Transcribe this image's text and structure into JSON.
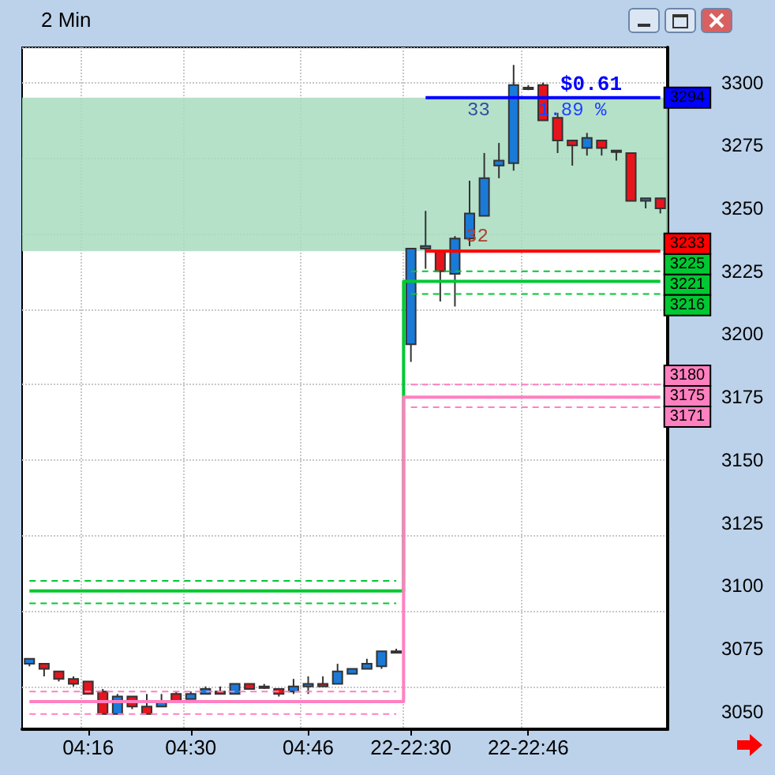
{
  "chart_data": {
    "type": "candlestick",
    "title": "2 Min",
    "categories": [
      null,
      null,
      null,
      null,
      "04:16",
      null,
      null,
      null,
      null,
      null,
      null,
      "04:30",
      null,
      null,
      null,
      null,
      null,
      null,
      null,
      "04:46",
      null,
      null,
      null,
      null,
      null,
      null,
      "22-22:30",
      null,
      null,
      null,
      null,
      null,
      null,
      null,
      "22-22:46",
      null,
      null,
      null,
      null,
      null,
      null,
      null,
      null,
      null
    ],
    "ohlc": [
      [
        3069,
        3071,
        3068,
        3071
      ],
      [
        3069,
        3069,
        3064,
        3067
      ],
      [
        3066,
        3066,
        3062,
        3063
      ],
      [
        3063,
        3064,
        3060,
        3061
      ],
      [
        3062,
        3062,
        3057,
        3057
      ],
      [
        3058,
        3059,
        3049,
        3049
      ],
      [
        3049,
        3057,
        3049,
        3056
      ],
      [
        3056,
        3056,
        3051,
        3052
      ],
      [
        3052,
        3057,
        3049,
        3049
      ],
      [
        3052,
        3057,
        3052,
        3054
      ],
      [
        3057,
        3058,
        3054,
        3054
      ],
      [
        3055,
        3058,
        3055,
        3057
      ],
      [
        3057,
        3060,
        3057,
        3059
      ],
      [
        3058,
        3060,
        3057,
        3057
      ],
      [
        3057,
        3061,
        3057,
        3061
      ],
      [
        3061,
        3061,
        3059,
        3059
      ],
      [
        3060,
        3061,
        3059,
        3060
      ],
      [
        3059,
        3059,
        3056,
        3057
      ],
      [
        3058,
        3063,
        3057,
        3060
      ],
      [
        3060,
        3064,
        3057,
        3061
      ],
      [
        3061,
        3064,
        3060,
        3060
      ],
      [
        3061,
        3069,
        3061,
        3066
      ],
      [
        3065,
        3067,
        3065,
        3067
      ],
      [
        3067,
        3071,
        3067,
        3069
      ],
      [
        3068,
        3074,
        3067,
        3074
      ],
      [
        3074,
        3075,
        3074,
        3074
      ],
      [
        3196,
        3234,
        3189,
        3234
      ],
      [
        3234,
        3249,
        3226,
        3235
      ],
      [
        3233,
        3233,
        3213,
        3225
      ],
      [
        3224,
        3239,
        3211,
        3238
      ],
      [
        3238,
        3261,
        3235,
        3248
      ],
      [
        3247,
        3272,
        3247,
        3262
      ],
      [
        3267,
        3276,
        3262,
        3269
      ],
      [
        3268,
        3307,
        3265,
        3299
      ],
      [
        3298,
        3299,
        3297,
        3298
      ],
      [
        3299,
        3300,
        3285,
        3285
      ],
      [
        3286,
        3288,
        3272,
        3277
      ],
      [
        3277,
        3277,
        3267,
        3275
      ],
      [
        3274,
        3280,
        3271,
        3278
      ],
      [
        3277,
        3277,
        3271,
        3274
      ],
      [
        3273,
        3273,
        3269,
        3273
      ],
      [
        3272,
        3272,
        3253,
        3253
      ],
      [
        3253,
        3254,
        3250,
        3254
      ],
      [
        3254,
        3254,
        3248,
        3250
      ]
    ],
    "colors": [
      "#1a7ad8",
      "#e8141c",
      "#e8141c",
      "#e8141c",
      "#e8141c",
      "#e8141c",
      "#1a7ad8",
      "#e8141c",
      "#e8141c",
      "#1a7ad8",
      "#e8141c",
      "#1a7ad8",
      "#1a7ad8",
      "#e8141c",
      "#1a7ad8",
      "#e8141c",
      "#1a7ad8",
      "#e8141c",
      "#1a7ad8",
      "#1a7ad8",
      "#e8141c",
      "#1a7ad8",
      "#1a7ad8",
      "#1a7ad8",
      "#1a7ad8",
      "#1a7ad8",
      "#1a7ad8",
      "#1a7ad8",
      "#e8141c",
      "#1a7ad8",
      "#1a7ad8",
      "#1a7ad8",
      "#1a7ad8",
      "#1a7ad8",
      "#1a7ad8",
      "#e8141c",
      "#e8141c",
      "#e8141c",
      "#1a7ad8",
      "#e8141c",
      "#1a7ad8",
      "#e8141c",
      "#1a7ad8",
      "#e8141c"
    ],
    "series": [
      {
        "type": "step",
        "color": "#00c832",
        "line_style": "solid",
        "values": [
          3098,
          3098,
          3098,
          3098,
          3098,
          3098,
          3098,
          3098,
          3098,
          3098,
          3098,
          3098,
          3098,
          3098,
          3098,
          3098,
          3098,
          3098,
          3098,
          3098,
          3098,
          3098,
          3098,
          3098,
          3098,
          3098,
          3221,
          3221,
          3221,
          3221,
          3221,
          3221,
          3221,
          3221,
          3221,
          3221,
          3221,
          3221,
          3221,
          3221,
          3221,
          3221,
          3221,
          3221
        ],
        "value_labels": [
          null,
          null,
          null,
          null,
          null,
          null,
          null,
          null,
          null,
          null,
          null,
          null,
          null,
          null,
          null,
          null,
          null,
          null,
          null,
          null,
          null,
          null,
          null,
          null,
          null,
          null,
          null,
          null,
          null,
          null,
          null,
          null,
          null,
          null,
          null,
          null,
          null,
          null,
          null,
          null,
          null,
          null,
          null,
          "3221"
        ]
      },
      {
        "type": "line",
        "color": "#00c832",
        "line_style": "dashed",
        "values": [
          3102,
          3102,
          3102,
          3102,
          3102,
          3102,
          3102,
          3102,
          3102,
          3102,
          3102,
          3102,
          3102,
          3102,
          3102,
          3102,
          3102,
          3102,
          3102,
          3102,
          3102,
          3102,
          3102,
          3102,
          3102,
          3102,
          null,
          null,
          null,
          null,
          null,
          null,
          null,
          null,
          null,
          null,
          null,
          null,
          null,
          null,
          null,
          null,
          null,
          null
        ]
      },
      {
        "type": "line",
        "color": "#00c832",
        "line_style": "dashed",
        "values": [
          3093,
          3093,
          3093,
          3093,
          3093,
          3093,
          3093,
          3093,
          3093,
          3093,
          3093,
          3093,
          3093,
          3093,
          3093,
          3093,
          3093,
          3093,
          3093,
          3093,
          3093,
          3093,
          3093,
          3093,
          3093,
          3093,
          null,
          null,
          null,
          null,
          null,
          null,
          null,
          null,
          null,
          null,
          null,
          null,
          null,
          null,
          null,
          null,
          null,
          null
        ]
      },
      {
        "type": "line",
        "color": "#00c832",
        "line_style": "dashed",
        "values": [
          null,
          null,
          null,
          null,
          null,
          null,
          null,
          null,
          null,
          null,
          null,
          null,
          null,
          null,
          null,
          null,
          null,
          null,
          null,
          null,
          null,
          null,
          null,
          null,
          null,
          null,
          3225,
          3225,
          3225,
          3225,
          3225,
          3225,
          3225,
          3225,
          3225,
          3225,
          3225,
          3225,
          3225,
          3225,
          3225,
          3225,
          3225,
          3225
        ],
        "value_labels": [
          null,
          null,
          null,
          null,
          null,
          null,
          null,
          null,
          null,
          null,
          null,
          null,
          null,
          null,
          null,
          null,
          null,
          null,
          null,
          null,
          null,
          null,
          null,
          null,
          null,
          null,
          null,
          null,
          null,
          null,
          null,
          null,
          null,
          null,
          null,
          null,
          null,
          null,
          null,
          null,
          null,
          null,
          null,
          "3225"
        ]
      },
      {
        "type": "line",
        "color": "#00c832",
        "line_style": "dashed",
        "values": [
          null,
          null,
          null,
          null,
          null,
          null,
          null,
          null,
          null,
          null,
          null,
          null,
          null,
          null,
          null,
          null,
          null,
          null,
          null,
          null,
          null,
          null,
          null,
          null,
          null,
          null,
          3216,
          3216,
          3216,
          3216,
          3216,
          3216,
          3216,
          3216,
          3216,
          3216,
          3216,
          3216,
          3216,
          3216,
          3216,
          3216,
          3216,
          3216
        ],
        "value_labels": [
          null,
          null,
          null,
          null,
          null,
          null,
          null,
          null,
          null,
          null,
          null,
          null,
          null,
          null,
          null,
          null,
          null,
          null,
          null,
          null,
          null,
          null,
          null,
          null,
          null,
          null,
          null,
          null,
          null,
          null,
          null,
          null,
          null,
          null,
          null,
          null,
          null,
          null,
          null,
          null,
          null,
          null,
          null,
          "3216"
        ]
      },
      {
        "type": "step",
        "color": "#ff80c0",
        "line_style": "solid",
        "values": [
          3054,
          3054,
          3054,
          3054,
          3054,
          3054,
          3054,
          3054,
          3054,
          3054,
          3054,
          3054,
          3054,
          3054,
          3054,
          3054,
          3054,
          3054,
          3054,
          3054,
          3054,
          3054,
          3054,
          3054,
          3054,
          3054,
          3175,
          3175,
          3175,
          3175,
          3175,
          3175,
          3175,
          3175,
          3175,
          3175,
          3175,
          3175,
          3175,
          3175,
          3175,
          3175,
          3175,
          3175
        ],
        "value_labels": [
          null,
          null,
          null,
          null,
          null,
          null,
          null,
          null,
          null,
          null,
          null,
          null,
          null,
          null,
          null,
          null,
          null,
          null,
          null,
          null,
          null,
          null,
          null,
          null,
          null,
          null,
          null,
          null,
          null,
          null,
          null,
          null,
          null,
          null,
          null,
          null,
          null,
          null,
          null,
          null,
          null,
          null,
          null,
          "3175"
        ]
      },
      {
        "type": "line",
        "color": "#ff80c0",
        "line_style": "dashed",
        "values": [
          3058,
          3058,
          3058,
          3058,
          3058,
          3058,
          3058,
          3058,
          3058,
          3058,
          3058,
          3058,
          3058,
          3058,
          3058,
          3058,
          3058,
          3058,
          3058,
          3058,
          3058,
          3058,
          3058,
          3058,
          3058,
          3058,
          null,
          null,
          null,
          null,
          null,
          null,
          null,
          null,
          null,
          null,
          null,
          null,
          null,
          null,
          null,
          null,
          null,
          null
        ]
      },
      {
        "type": "line",
        "color": "#ff80c0",
        "line_style": "dashed",
        "values": [
          3049,
          3049,
          3049,
          3049,
          3049,
          3049,
          3049,
          3049,
          3049,
          3049,
          3049,
          3049,
          3049,
          3049,
          3049,
          3049,
          3049,
          3049,
          3049,
          3049,
          3049,
          3049,
          3049,
          3049,
          3049,
          3049,
          null,
          null,
          null,
          null,
          null,
          null,
          null,
          null,
          null,
          null,
          null,
          null,
          null,
          null,
          null,
          null,
          null,
          null
        ]
      },
      {
        "type": "line",
        "color": "#ff80c0",
        "line_style": "dashed",
        "values": [
          null,
          null,
          null,
          null,
          null,
          null,
          null,
          null,
          null,
          null,
          null,
          null,
          null,
          null,
          null,
          null,
          null,
          null,
          null,
          null,
          null,
          null,
          null,
          null,
          null,
          null,
          3180,
          3180,
          3180,
          3180,
          3180,
          3180,
          3180,
          3180,
          3180,
          3180,
          3180,
          3180,
          3180,
          3180,
          3180,
          3180,
          3180,
          3180
        ],
        "value_labels": [
          null,
          null,
          null,
          null,
          null,
          null,
          null,
          null,
          null,
          null,
          null,
          null,
          null,
          null,
          null,
          null,
          null,
          null,
          null,
          null,
          null,
          null,
          null,
          null,
          null,
          null,
          null,
          null,
          null,
          null,
          null,
          null,
          null,
          null,
          null,
          null,
          null,
          null,
          null,
          null,
          null,
          null,
          null,
          "3180"
        ]
      },
      {
        "type": "line",
        "color": "#ff80c0",
        "line_style": "dashed",
        "values": [
          null,
          null,
          null,
          null,
          null,
          null,
          null,
          null,
          null,
          null,
          null,
          null,
          null,
          null,
          null,
          null,
          null,
          null,
          null,
          null,
          null,
          null,
          null,
          null,
          null,
          null,
          3171,
          3171,
          3171,
          3171,
          3171,
          3171,
          3171,
          3171,
          3171,
          3171,
          3171,
          3171,
          3171,
          3171,
          3171,
          3171,
          3171,
          3171
        ],
        "value_labels": [
          null,
          null,
          null,
          null,
          null,
          null,
          null,
          null,
          null,
          null,
          null,
          null,
          null,
          null,
          null,
          null,
          null,
          null,
          null,
          null,
          null,
          null,
          null,
          null,
          null,
          null,
          null,
          null,
          null,
          null,
          null,
          null,
          null,
          null,
          null,
          null,
          null,
          null,
          null,
          null,
          null,
          null,
          null,
          "3171"
        ]
      },
      {
        "type": "line",
        "color": "#0000ff",
        "line_style": "solid",
        "values": [
          null,
          null,
          null,
          null,
          null,
          null,
          null,
          null,
          null,
          null,
          null,
          null,
          null,
          null,
          null,
          null,
          null,
          null,
          null,
          null,
          null,
          null,
          null,
          null,
          null,
          null,
          null,
          3294,
          3294,
          3294,
          3294,
          3294,
          3294,
          3294,
          3294,
          3294,
          3294,
          3294,
          3294,
          3294,
          3294,
          3294,
          3294,
          3294
        ],
        "value_labels": [
          null,
          null,
          null,
          null,
          null,
          null,
          null,
          null,
          null,
          null,
          null,
          null,
          null,
          null,
          null,
          null,
          null,
          null,
          null,
          null,
          null,
          null,
          null,
          null,
          null,
          null,
          null,
          null,
          null,
          null,
          null,
          null,
          null,
          null,
          null,
          null,
          null,
          null,
          null,
          null,
          null,
          null,
          null,
          "3294"
        ]
      },
      {
        "type": "line",
        "color": "#ff0000",
        "line_style": "solid",
        "values": [
          null,
          null,
          null,
          null,
          null,
          null,
          null,
          null,
          null,
          null,
          null,
          null,
          null,
          null,
          null,
          null,
          null,
          null,
          null,
          null,
          null,
          null,
          null,
          null,
          null,
          null,
          null,
          3233,
          3233,
          3233,
          3233,
          3233,
          3233,
          3233,
          3233,
          3233,
          3233,
          3233,
          3233,
          3233,
          3233,
          3233,
          3233,
          3233
        ],
        "value_labels": [
          null,
          null,
          null,
          null,
          null,
          null,
          null,
          null,
          null,
          null,
          null,
          null,
          null,
          null,
          null,
          null,
          null,
          null,
          null,
          null,
          null,
          null,
          null,
          null,
          null,
          null,
          null,
          null,
          null,
          null,
          null,
          null,
          null,
          null,
          null,
          null,
          null,
          null,
          null,
          null,
          null,
          null,
          null,
          "3233"
        ]
      }
    ],
    "bands": [
      {
        "axis": "y",
        "from": 3233,
        "to": 3294,
        "color": "#a8dcc0"
      }
    ],
    "annotations": [
      "$0.61",
      "1.89 %",
      "33",
      "32"
    ],
    "ylim": [
      3043,
      3314
    ],
    "yticks": [
      3050,
      3075,
      3100,
      3125,
      3150,
      3175,
      3200,
      3225,
      3250,
      3275,
      3300
    ],
    "grid": true
  }
}
